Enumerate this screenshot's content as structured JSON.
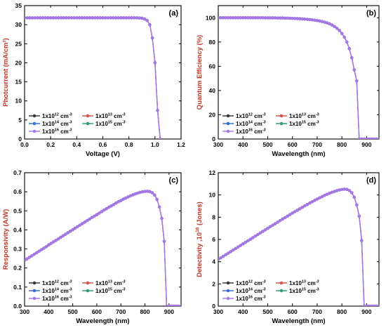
{
  "palette": {
    "series_colors": [
      "#3a3a3a",
      "#d9534f",
      "#3a6fd8",
      "#2e9e6e",
      "#a77ae8"
    ],
    "ylabel_color": "#c0392b",
    "xlabel_color": "#000000"
  },
  "chart_data": [
    {
      "type": "line",
      "tag": "(a)",
      "xlabel": "Voltage (V)",
      "ylabel": "Photcurrent (mA/cm²)",
      "xlim": [
        0,
        1.2
      ],
      "ylim": [
        0,
        35
      ],
      "xticks": [
        0,
        0.2,
        0.4,
        0.6,
        0.8,
        1.0,
        1.2
      ],
      "xtick_labels": [
        "0.0",
        "0.2",
        "0.4",
        "0.6",
        "0.8",
        "1.0",
        "1.2"
      ],
      "yticks": [
        0,
        5,
        10,
        15,
        20,
        25,
        30,
        35
      ],
      "ytick_labels": [
        "0",
        "5",
        "10",
        "15",
        "20",
        "25",
        "30",
        "35"
      ],
      "legend": {
        "placement": "bottom-left",
        "entries": [
          {
            "base": "1x10",
            "exp": "12",
            "unit": " cm",
            "unit_exp": "-3"
          },
          {
            "base": "1x10",
            "exp": "13",
            "unit": " cm",
            "unit_exp": "-3"
          },
          {
            "base": "1x10",
            "exp": "14",
            "unit": " cm",
            "unit_exp": "-3"
          },
          {
            "base": "1x10",
            "exp": "15",
            "unit": " cm",
            "unit_exp": "-3"
          },
          {
            "base": "1x10",
            "exp": "16",
            "unit": " cm",
            "unit_exp": "-3"
          }
        ]
      },
      "series_note": "All five doping series overlap",
      "x": [
        0,
        0.02,
        0.04,
        0.06,
        0.08,
        0.1,
        0.12,
        0.14,
        0.16,
        0.18,
        0.2,
        0.22,
        0.24,
        0.26,
        0.28,
        0.3,
        0.32,
        0.34,
        0.36,
        0.38,
        0.4,
        0.42,
        0.44,
        0.46,
        0.48,
        0.5,
        0.52,
        0.54,
        0.56,
        0.58,
        0.6,
        0.62,
        0.64,
        0.66,
        0.68,
        0.7,
        0.72,
        0.74,
        0.76,
        0.78,
        0.8,
        0.82,
        0.84,
        0.86,
        0.88,
        0.9,
        0.92,
        0.94,
        0.96,
        0.98,
        1.0,
        1.02,
        1.04
      ],
      "y": [
        31.8,
        31.8,
        31.8,
        31.8,
        31.8,
        31.8,
        31.8,
        31.8,
        31.8,
        31.8,
        31.8,
        31.8,
        31.8,
        31.8,
        31.8,
        31.8,
        31.8,
        31.8,
        31.8,
        31.8,
        31.8,
        31.8,
        31.8,
        31.8,
        31.8,
        31.8,
        31.8,
        31.8,
        31.8,
        31.8,
        31.8,
        31.8,
        31.8,
        31.8,
        31.8,
        31.8,
        31.8,
        31.8,
        31.8,
        31.8,
        31.8,
        31.8,
        31.8,
        31.8,
        31.75,
        31.7,
        31.5,
        31.1,
        30.0,
        26.5,
        20.0,
        7.5,
        0
      ]
    },
    {
      "type": "line",
      "tag": "(b)",
      "xlabel": "Wavelength (nm)",
      "ylabel": "Quantum Efficiency (%)",
      "xlim": [
        300,
        950
      ],
      "ylim": [
        0,
        110
      ],
      "xticks": [
        300,
        400,
        500,
        600,
        700,
        800,
        900
      ],
      "xtick_labels": [
        "300",
        "400",
        "500",
        "600",
        "700",
        "800",
        "900"
      ],
      "yticks": [
        0,
        20,
        40,
        60,
        80,
        100
      ],
      "ytick_labels": [
        "0",
        "20",
        "40",
        "60",
        "80",
        "100"
      ],
      "legend": {
        "placement": "bottom-left",
        "entries": [
          {
            "base": "1x10",
            "exp": "12",
            "unit": " cm",
            "unit_exp": "-3"
          },
          {
            "base": "1x10",
            "exp": "13",
            "unit": " cm",
            "unit_exp": "-3"
          },
          {
            "base": "1x10",
            "exp": "14",
            "unit": " cm",
            "unit_exp": "-3"
          },
          {
            "base": "1x10",
            "exp": "15",
            "unit": " cm",
            "unit_exp": "-3"
          },
          {
            "base": "1x10",
            "exp": "16",
            "unit": " cm",
            "unit_exp": "-3"
          }
        ]
      },
      "x": [
        300,
        310,
        320,
        330,
        340,
        350,
        360,
        370,
        380,
        390,
        400,
        410,
        420,
        430,
        440,
        450,
        460,
        470,
        480,
        490,
        500,
        510,
        520,
        530,
        540,
        550,
        560,
        570,
        580,
        590,
        600,
        610,
        620,
        630,
        640,
        650,
        660,
        670,
        680,
        690,
        700,
        710,
        720,
        730,
        740,
        750,
        760,
        770,
        780,
        790,
        800,
        810,
        820,
        830,
        840,
        850,
        860,
        870,
        880,
        890,
        900,
        910,
        920,
        930,
        940,
        950
      ],
      "y": [
        100,
        100,
        100,
        100,
        100,
        100,
        100,
        100,
        100,
        100,
        100,
        100,
        100,
        100,
        100,
        100,
        100,
        100,
        100,
        99.9,
        99.9,
        99.9,
        99.9,
        99.9,
        99.8,
        99.8,
        99.8,
        99.7,
        99.7,
        99.6,
        99.5,
        99.4,
        99.3,
        99.2,
        99.0,
        98.9,
        98.7,
        98.5,
        98.3,
        98.0,
        97.7,
        97.3,
        96.9,
        96.4,
        95.8,
        95.0,
        94.0,
        92.8,
        91.3,
        89.5,
        87.0,
        84.0,
        80.0,
        74.5,
        67.0,
        57.0,
        48.0,
        0,
        0,
        0,
        0,
        0,
        0,
        0,
        0,
        0
      ]
    },
    {
      "type": "line",
      "tag": "(c)",
      "xlabel": "Wavelength (nm)",
      "ylabel": "Responsivity (A/W)",
      "xlim": [
        300,
        950
      ],
      "ylim": [
        0,
        0.7
      ],
      "xticks": [
        300,
        400,
        500,
        600,
        700,
        800,
        900
      ],
      "xtick_labels": [
        "300",
        "400",
        "500",
        "600",
        "700",
        "800",
        "900"
      ],
      "yticks": [
        0,
        0.1,
        0.2,
        0.3,
        0.4,
        0.5,
        0.6,
        0.7
      ],
      "ytick_labels": [
        "0.0",
        "0.1",
        "0.2",
        "0.3",
        "0.4",
        "0.5",
        "0.6",
        "0.7"
      ],
      "legend": {
        "placement": "bottom-left",
        "entries": [
          {
            "base": "1x10",
            "exp": "12",
            "unit": " cm",
            "unit_exp": "-3"
          },
          {
            "base": "1x10",
            "exp": "13",
            "unit": " cm",
            "unit_exp": "-3"
          },
          {
            "base": "1x10",
            "exp": "14",
            "unit": " cm",
            "unit_exp": "-3"
          },
          {
            "base": "1x10",
            "exp": "15",
            "unit": " cm",
            "unit_exp": "-3"
          },
          {
            "base": "1x10",
            "exp": "16",
            "unit": " cm",
            "unit_exp": "-3"
          }
        ]
      },
      "x": [
        300,
        310,
        320,
        330,
        340,
        350,
        360,
        370,
        380,
        390,
        400,
        410,
        420,
        430,
        440,
        450,
        460,
        470,
        480,
        490,
        500,
        510,
        520,
        530,
        540,
        550,
        560,
        570,
        580,
        590,
        600,
        610,
        620,
        630,
        640,
        650,
        660,
        670,
        680,
        690,
        700,
        710,
        720,
        730,
        740,
        750,
        760,
        770,
        780,
        790,
        800,
        810,
        820,
        830,
        840,
        850,
        860,
        870,
        880,
        890,
        900,
        910,
        920,
        930,
        940,
        950
      ],
      "y": [
        0.24,
        0.248,
        0.256,
        0.264,
        0.272,
        0.28,
        0.288,
        0.296,
        0.304,
        0.312,
        0.321,
        0.329,
        0.337,
        0.345,
        0.353,
        0.361,
        0.369,
        0.377,
        0.385,
        0.393,
        0.401,
        0.409,
        0.417,
        0.425,
        0.433,
        0.441,
        0.449,
        0.457,
        0.465,
        0.472,
        0.48,
        0.488,
        0.496,
        0.504,
        0.511,
        0.519,
        0.526,
        0.533,
        0.541,
        0.548,
        0.554,
        0.561,
        0.567,
        0.573,
        0.579,
        0.584,
        0.589,
        0.593,
        0.597,
        0.6,
        0.602,
        0.603,
        0.601,
        0.595,
        0.583,
        0.56,
        0.52,
        0.46,
        0.34,
        0,
        0,
        0,
        0,
        0,
        0,
        0
      ]
    },
    {
      "type": "line",
      "tag": "(d)",
      "xlabel": "Wavelength (nm)",
      "ylabel": "Detectivity ,10",
      "ylabel_exp": "16",
      "ylabel_suffix": " (Jones)",
      "xlim": [
        300,
        950
      ],
      "ylim": [
        0,
        12
      ],
      "xticks": [
        300,
        400,
        500,
        600,
        700,
        800,
        900
      ],
      "xtick_labels": [
        "300",
        "400",
        "500",
        "600",
        "700",
        "800",
        "900"
      ],
      "yticks": [
        0,
        2,
        4,
        6,
        8,
        10,
        12
      ],
      "ytick_labels": [
        "0",
        "2",
        "4",
        "6",
        "8",
        "10",
        "12"
      ],
      "legend": {
        "placement": "bottom-left",
        "entries": [
          {
            "base": "1x10",
            "exp": "12",
            "unit": " cm",
            "unit_exp": "-3"
          },
          {
            "base": "1x10",
            "exp": "13",
            "unit": " cm",
            "unit_exp": "-3"
          },
          {
            "base": "1x10",
            "exp": "14",
            "unit": " cm",
            "unit_exp": "-3"
          },
          {
            "base": "1x10",
            "exp": "15",
            "unit": " cm",
            "unit_exp": "-3"
          },
          {
            "base": "1x10",
            "exp": "16",
            "unit": " cm",
            "unit_exp": "-3"
          }
        ]
      },
      "x": [
        300,
        310,
        320,
        330,
        340,
        350,
        360,
        370,
        380,
        390,
        400,
        410,
        420,
        430,
        440,
        450,
        460,
        470,
        480,
        490,
        500,
        510,
        520,
        530,
        540,
        550,
        560,
        570,
        580,
        590,
        600,
        610,
        620,
        630,
        640,
        650,
        660,
        670,
        680,
        690,
        700,
        710,
        720,
        730,
        740,
        750,
        760,
        770,
        780,
        790,
        800,
        810,
        820,
        830,
        840,
        850,
        860,
        870,
        880,
        890,
        900,
        910,
        920,
        930,
        940,
        950
      ],
      "y": [
        4.2,
        4.34,
        4.48,
        4.62,
        4.76,
        4.9,
        5.04,
        5.18,
        5.32,
        5.46,
        5.6,
        5.74,
        5.88,
        6.02,
        6.16,
        6.3,
        6.44,
        6.58,
        6.72,
        6.86,
        7.0,
        7.14,
        7.28,
        7.41,
        7.55,
        7.69,
        7.83,
        7.96,
        8.1,
        8.23,
        8.37,
        8.5,
        8.63,
        8.76,
        8.89,
        9.02,
        9.14,
        9.27,
        9.39,
        9.51,
        9.63,
        9.74,
        9.85,
        9.96,
        10.06,
        10.15,
        10.24,
        10.32,
        10.39,
        10.45,
        10.49,
        10.52,
        10.5,
        10.4,
        10.2,
        9.8,
        9.1,
        8.1,
        5.9,
        0,
        0,
        0,
        0,
        0,
        0,
        0
      ]
    }
  ]
}
